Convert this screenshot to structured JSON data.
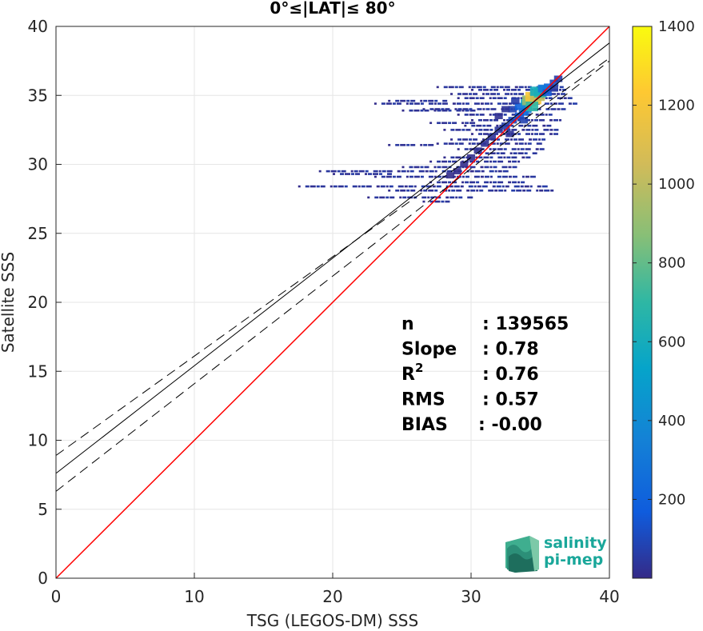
{
  "chart_data": {
    "type": "heatmap",
    "title": "0°≤|LAT|≤ 80°",
    "xlabel": "TSG (LEGOS-DM) SSS",
    "ylabel": "Satellite SSS",
    "xlim": [
      0,
      40
    ],
    "ylim": [
      0,
      40
    ],
    "xticks": [
      "0",
      "10",
      "20",
      "30",
      "40"
    ],
    "yticks": [
      "0",
      "5",
      "10",
      "15",
      "20",
      "25",
      "30",
      "35",
      "40"
    ],
    "grid": true,
    "colorbar": {
      "range": [
        0,
        1400
      ],
      "ticks": [
        "200",
        "400",
        "600",
        "800",
        "1000",
        "1200",
        "1400"
      ],
      "colormap": "parula"
    },
    "lines": [
      {
        "role": "one-to-one",
        "color": "#ff0000",
        "intercept": 0,
        "slope": 1
      },
      {
        "role": "regression",
        "color": "#000000",
        "intercept": 7.6,
        "slope": 0.78
      },
      {
        "role": "upper-bound",
        "color": "#000000",
        "style": "dashed",
        "intercept": 8.9,
        "slope": 0.72
      },
      {
        "role": "lower-bound",
        "color": "#000000",
        "style": "dashed",
        "intercept": 6.3,
        "slope": 0.78
      }
    ],
    "stats": [
      {
        "label": "n",
        "value": ": 139565"
      },
      {
        "label": "Slope",
        "value": ": 0.78"
      },
      {
        "label": "R",
        "sup": "2",
        "value": ": 0.76"
      },
      {
        "label": "RMS",
        "value": ": 0.57"
      },
      {
        "label": "BIAS",
        "value": ": -0.00"
      }
    ],
    "density_cells": [
      [
        33.0,
        34.0,
        80
      ],
      [
        33.5,
        34.2,
        200
      ],
      [
        34.0,
        34.4,
        500
      ],
      [
        34.2,
        34.6,
        900
      ],
      [
        34.5,
        34.8,
        1200
      ],
      [
        34.8,
        35.0,
        1000
      ],
      [
        35.0,
        35.2,
        700
      ],
      [
        35.3,
        35.4,
        400
      ],
      [
        35.6,
        35.6,
        200
      ],
      [
        36.0,
        35.9,
        100
      ],
      [
        36.3,
        36.2,
        60
      ],
      [
        34.0,
        34.0,
        350
      ],
      [
        33.8,
        33.8,
        250
      ],
      [
        33.5,
        33.5,
        150
      ],
      [
        33.0,
        33.2,
        100
      ],
      [
        32.5,
        32.8,
        60
      ],
      [
        32.0,
        32.5,
        40
      ],
      [
        31.5,
        32.0,
        30
      ],
      [
        31.0,
        31.5,
        25
      ],
      [
        30.5,
        31.0,
        20
      ],
      [
        30.0,
        30.5,
        15
      ],
      [
        29.5,
        30.0,
        10
      ],
      [
        29.0,
        29.5,
        10
      ],
      [
        28.5,
        29.2,
        8
      ],
      [
        34.7,
        35.3,
        600
      ],
      [
        35.2,
        35.5,
        300
      ],
      [
        33.2,
        34.6,
        60
      ],
      [
        32.5,
        34.0,
        30
      ],
      [
        32.0,
        33.5,
        20
      ],
      [
        34.4,
        34.2,
        700
      ],
      [
        35.5,
        35.2,
        150
      ],
      [
        36.0,
        35.5,
        50
      ],
      [
        33.8,
        33.2,
        80
      ],
      [
        32.8,
        32.2,
        30
      ]
    ],
    "sparse_rows": [
      [
        35.6,
        27.5,
        36.5
      ],
      [
        35.4,
        30.0,
        37.0
      ],
      [
        35.1,
        28.5,
        36.5
      ],
      [
        34.8,
        29.0,
        37.0
      ],
      [
        34.4,
        23.0,
        37.5
      ],
      [
        34.0,
        26.5,
        37.0
      ],
      [
        33.6,
        29.0,
        36.0
      ],
      [
        33.2,
        30.0,
        36.5
      ],
      [
        32.8,
        29.5,
        35.5
      ],
      [
        32.5,
        28.0,
        36.0
      ],
      [
        32.2,
        30.0,
        36.0
      ],
      [
        31.8,
        28.5,
        35.5
      ],
      [
        31.5,
        27.5,
        35.0
      ],
      [
        31.1,
        29.0,
        35.0
      ],
      [
        30.8,
        30.5,
        34.5
      ],
      [
        30.5,
        28.0,
        34.0
      ],
      [
        30.2,
        27.0,
        33.5
      ],
      [
        29.8,
        25.0,
        33.0
      ],
      [
        29.5,
        19.0,
        32.5
      ],
      [
        29.1,
        23.0,
        34.5
      ],
      [
        28.7,
        27.0,
        34.0
      ],
      [
        28.4,
        17.5,
        35.5
      ],
      [
        28.1,
        24.0,
        36.0
      ],
      [
        27.6,
        22.5,
        30.0
      ],
      [
        27.3,
        26.5,
        28.5
      ],
      [
        34.6,
        24.0,
        28.0
      ],
      [
        33.9,
        25.0,
        30.5
      ],
      [
        33.0,
        27.0,
        30.0
      ],
      [
        31.4,
        24.0,
        27.0
      ],
      [
        29.3,
        20.0,
        24.0
      ]
    ]
  },
  "logo": {
    "line1": "salinity",
    "line2": "pi-mep"
  }
}
